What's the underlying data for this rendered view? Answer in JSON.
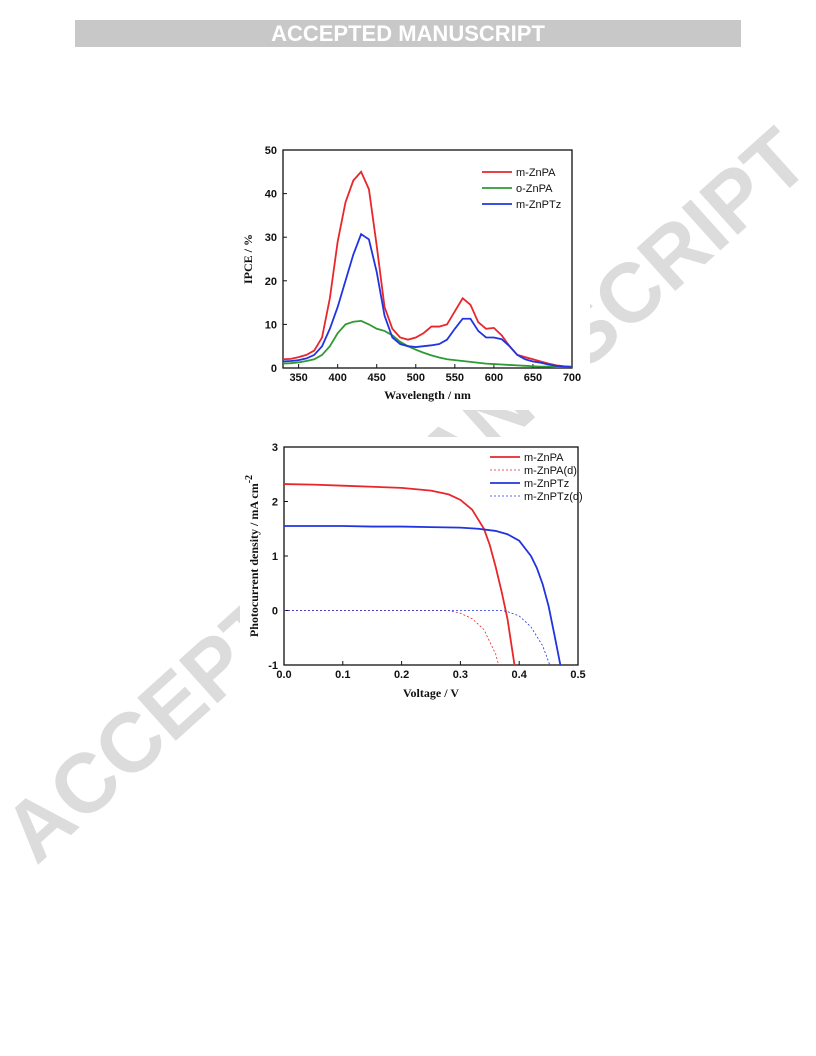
{
  "header": {
    "banner": "ACCEPTED MANUSCRIPT"
  },
  "watermark": "ACCEPTED MANUSCRIPT",
  "chart_data": [
    {
      "type": "line",
      "xlabel": "Wavelength / nm",
      "ylabel": "IPCE / %",
      "xlim": [
        330,
        700
      ],
      "xticks": [
        350,
        400,
        450,
        500,
        550,
        600,
        650,
        700
      ],
      "ylim": [
        0,
        50
      ],
      "yticks": [
        0,
        10,
        20,
        30,
        40,
        50
      ],
      "legend": "top-right",
      "x": [
        330,
        340,
        350,
        360,
        370,
        380,
        390,
        400,
        410,
        420,
        430,
        440,
        450,
        460,
        470,
        480,
        490,
        500,
        510,
        520,
        530,
        540,
        550,
        560,
        570,
        580,
        590,
        600,
        610,
        620,
        630,
        640,
        650,
        660,
        670,
        680,
        690,
        700
      ],
      "series": [
        {
          "name": "m-ZnPA",
          "color": "#e8262b",
          "values": [
            2,
            2.1,
            2.5,
            3,
            4,
            7,
            16,
            29,
            38,
            43,
            45,
            41,
            28,
            14,
            9,
            7,
            6.5,
            7,
            8,
            9.5,
            9.5,
            10,
            13,
            16,
            14.5,
            10.5,
            9,
            9.2,
            7.5,
            5,
            3,
            2.5,
            2,
            1.5,
            1,
            0.6,
            0.4,
            0.3
          ]
        },
        {
          "name": "o-ZnPA",
          "color": "#2f9a33",
          "values": [
            1,
            1.1,
            1.3,
            1.6,
            2,
            3,
            5,
            8,
            10,
            10.6,
            10.8,
            10,
            9,
            8.5,
            7.5,
            6,
            5,
            4.2,
            3.5,
            2.9,
            2.4,
            2,
            1.8,
            1.6,
            1.4,
            1.2,
            1,
            0.9,
            0.8,
            0.7,
            0.6,
            0.5,
            0.4,
            0.3,
            0.3,
            0.2,
            0.2,
            0.2
          ]
        },
        {
          "name": "m-ZnPTz",
          "color": "#2134e0",
          "values": [
            1.5,
            1.6,
            1.8,
            2.2,
            3,
            5,
            9,
            14,
            20,
            26,
            30.7,
            29.5,
            22,
            12,
            7,
            5.5,
            5,
            4.8,
            5,
            5.2,
            5.5,
            6.5,
            9,
            11.3,
            11.3,
            8.5,
            7,
            7,
            6.6,
            5,
            3,
            2,
            1.5,
            1.2,
            0.8,
            0.5,
            0.3,
            0.2
          ]
        }
      ]
    },
    {
      "type": "line",
      "xlabel": "Voltage / V",
      "ylabel": "Photocurrent density / mA cm",
      "ylabel_superscript": "-2",
      "xlim": [
        0,
        0.5
      ],
      "xticks": [
        {
          "value": 0,
          "label": "0.0"
        },
        0.1,
        0.2,
        0.3,
        0.4,
        0.5
      ],
      "ylim": [
        -1,
        3
      ],
      "yticks": [
        -1,
        0,
        1,
        2,
        3
      ],
      "legend": "top-right",
      "series": [
        {
          "name": "m-ZnPA",
          "color": "#e8262b",
          "dashed": false,
          "x": [
            0,
            0.05,
            0.1,
            0.15,
            0.2,
            0.25,
            0.28,
            0.3,
            0.32,
            0.34,
            0.35,
            0.36,
            0.37,
            0.38,
            0.392
          ],
          "values": [
            2.32,
            2.31,
            2.29,
            2.27,
            2.25,
            2.2,
            2.13,
            2.03,
            1.85,
            1.5,
            1.2,
            0.8,
            0.35,
            -0.15,
            -1
          ]
        },
        {
          "name": "m-ZnPA(d)",
          "color": "#e8262b",
          "dashed": true,
          "x": [
            0,
            0.1,
            0.2,
            0.28,
            0.3,
            0.32,
            0.34,
            0.36,
            0.365
          ],
          "values": [
            0,
            0,
            0,
            0,
            -0.05,
            -0.15,
            -0.35,
            -0.8,
            -1
          ]
        },
        {
          "name": "m-ZnPTz",
          "color": "#2134e0",
          "dashed": false,
          "x": [
            0,
            0.05,
            0.1,
            0.15,
            0.2,
            0.25,
            0.3,
            0.33,
            0.36,
            0.38,
            0.4,
            0.42,
            0.43,
            0.44,
            0.45,
            0.46,
            0.47
          ],
          "values": [
            1.55,
            1.55,
            1.55,
            1.54,
            1.54,
            1.53,
            1.52,
            1.5,
            1.46,
            1.4,
            1.28,
            1,
            0.78,
            0.48,
            0.08,
            -0.45,
            -1
          ]
        },
        {
          "name": "m-ZnPTz(d)",
          "color": "#2134e0",
          "dashed": true,
          "x": [
            0,
            0.1,
            0.2,
            0.3,
            0.37,
            0.38,
            0.4,
            0.42,
            0.44,
            0.452
          ],
          "values": [
            0,
            0,
            0,
            0,
            0,
            -0.02,
            -0.1,
            -0.3,
            -0.65,
            -1
          ]
        }
      ]
    }
  ]
}
